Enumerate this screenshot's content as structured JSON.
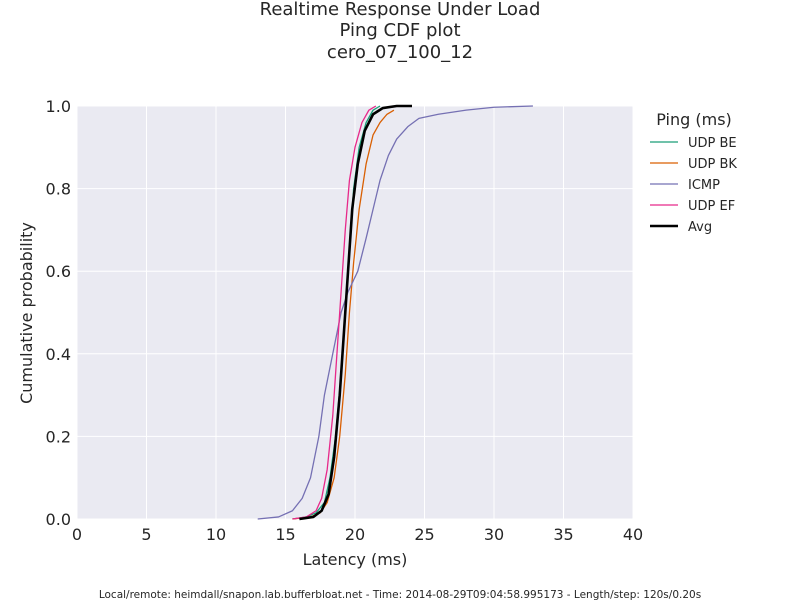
{
  "chart_data": {
    "type": "line",
    "title_lines": [
      "Realtime Response Under Load",
      "Ping CDF plot",
      "cero_07_100_12"
    ],
    "xlabel": "Latency (ms)",
    "ylabel": "Cumulative probability",
    "xlim": [
      0,
      40
    ],
    "ylim": [
      0,
      1.0
    ],
    "xticks": [
      0,
      5,
      10,
      15,
      20,
      25,
      30,
      35,
      40
    ],
    "yticks": [
      0.0,
      0.2,
      0.4,
      0.6,
      0.8,
      1.0
    ],
    "xtick_labels": [
      "0",
      "5",
      "10",
      "15",
      "20",
      "25",
      "30",
      "35",
      "40"
    ],
    "ytick_labels": [
      "0.0",
      "0.2",
      "0.4",
      "0.6",
      "0.8",
      "1.0"
    ],
    "grid": true,
    "background": "#eaeaf2",
    "legend": {
      "title": "Ping (ms)",
      "placement": "right-outside"
    },
    "series": [
      {
        "name": "UDP BE",
        "color": "#1b9e77",
        "points": [
          [
            15.5,
            0
          ],
          [
            16.5,
            0.005
          ],
          [
            17.2,
            0.015
          ],
          [
            17.8,
            0.04
          ],
          [
            18.2,
            0.1
          ],
          [
            18.6,
            0.2
          ],
          [
            19.0,
            0.35
          ],
          [
            19.3,
            0.5
          ],
          [
            19.6,
            0.65
          ],
          [
            19.9,
            0.8
          ],
          [
            20.3,
            0.9
          ],
          [
            20.8,
            0.96
          ],
          [
            21.3,
            0.99
          ],
          [
            21.8,
            1.0
          ]
        ]
      },
      {
        "name": "UDP BK",
        "color": "#d95f02",
        "points": [
          [
            15.5,
            0
          ],
          [
            16.8,
            0.005
          ],
          [
            17.5,
            0.015
          ],
          [
            18.0,
            0.04
          ],
          [
            18.5,
            0.1
          ],
          [
            18.9,
            0.2
          ],
          [
            19.3,
            0.35
          ],
          [
            19.6,
            0.5
          ],
          [
            19.9,
            0.62
          ],
          [
            20.3,
            0.75
          ],
          [
            20.8,
            0.86
          ],
          [
            21.3,
            0.93
          ],
          [
            21.8,
            0.96
          ],
          [
            22.3,
            0.98
          ],
          [
            22.8,
            0.99
          ]
        ]
      },
      {
        "name": "ICMP",
        "color": "#7570b3",
        "points": [
          [
            13.0,
            0
          ],
          [
            14.5,
            0.005
          ],
          [
            15.5,
            0.02
          ],
          [
            16.2,
            0.05
          ],
          [
            16.8,
            0.1
          ],
          [
            17.4,
            0.2
          ],
          [
            17.8,
            0.3
          ],
          [
            18.4,
            0.4
          ],
          [
            19.0,
            0.5
          ],
          [
            19.5,
            0.55
          ],
          [
            20.2,
            0.6
          ],
          [
            20.8,
            0.68
          ],
          [
            21.3,
            0.75
          ],
          [
            21.8,
            0.82
          ],
          [
            22.4,
            0.88
          ],
          [
            23.0,
            0.92
          ],
          [
            23.8,
            0.95
          ],
          [
            24.6,
            0.97
          ],
          [
            26.0,
            0.98
          ],
          [
            28.0,
            0.99
          ],
          [
            30.0,
            0.997
          ],
          [
            32.8,
            1.0
          ]
        ]
      },
      {
        "name": "UDP EF",
        "color": "#e7298a",
        "points": [
          [
            15.5,
            0
          ],
          [
            16.5,
            0.005
          ],
          [
            17.2,
            0.02
          ],
          [
            17.6,
            0.05
          ],
          [
            18.0,
            0.12
          ],
          [
            18.4,
            0.25
          ],
          [
            18.7,
            0.4
          ],
          [
            19.0,
            0.55
          ],
          [
            19.3,
            0.7
          ],
          [
            19.6,
            0.82
          ],
          [
            20.0,
            0.9
          ],
          [
            20.5,
            0.96
          ],
          [
            21.0,
            0.99
          ],
          [
            21.5,
            1.0
          ]
        ]
      },
      {
        "name": "Avg",
        "color": "#000000",
        "points": [
          [
            16.0,
            0
          ],
          [
            17.0,
            0.005
          ],
          [
            17.6,
            0.02
          ],
          [
            18.1,
            0.06
          ],
          [
            18.5,
            0.15
          ],
          [
            18.9,
            0.3
          ],
          [
            19.2,
            0.45
          ],
          [
            19.5,
            0.6
          ],
          [
            19.8,
            0.75
          ],
          [
            20.2,
            0.86
          ],
          [
            20.7,
            0.94
          ],
          [
            21.3,
            0.98
          ],
          [
            22.0,
            0.995
          ],
          [
            23.0,
            1.0
          ],
          [
            24.1,
            1.0
          ]
        ]
      }
    ]
  },
  "footer": "Local/remote: heimdall/snapon.lab.bufferbloat.net - Time: 2014-08-29T09:04:58.995173 - Length/step: 120s/0.20s"
}
